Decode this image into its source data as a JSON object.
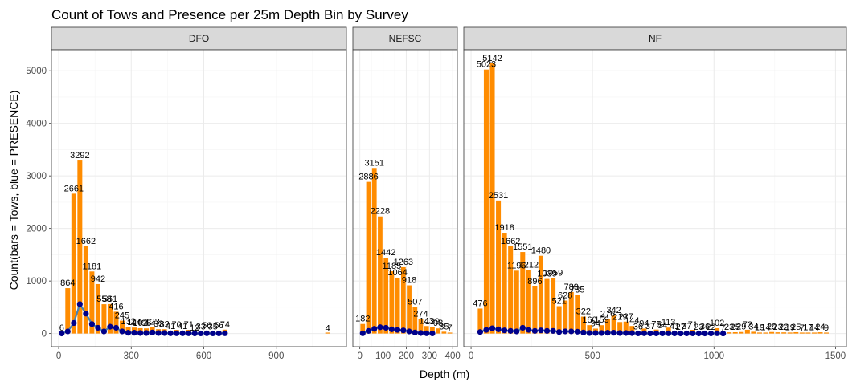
{
  "chart_data": {
    "type": "bar",
    "title": "Count of Tows and Presence per 25m Depth Bin by Survey",
    "xlabel": "Depth (m)",
    "ylabel": "Count(bars = Tows, blue = PRESENCE)",
    "ylim": [
      -250,
      5400
    ],
    "y_ticks": [
      0,
      1000,
      2000,
      3000,
      4000,
      5000
    ],
    "grid": true,
    "bin_width": 25,
    "series_colors": {
      "tows": "#ff8c00",
      "presence_line": "#4682b4",
      "presence_points": "#00008b"
    },
    "panels": [
      {
        "name": "DFO",
        "xlim": [
          -30,
          1190
        ],
        "x_ticks": [
          0,
          300,
          600,
          900
        ],
        "x": [
          12.5,
          37.5,
          62.5,
          87.5,
          112.5,
          137.5,
          162.5,
          187.5,
          212.5,
          237.5,
          262.5,
          287.5,
          312.5,
          337.5,
          362.5,
          387.5,
          412.5,
          437.5,
          462.5,
          487.5,
          512.5,
          537.5,
          562.5,
          587.5,
          612.5,
          637.5,
          662.5,
          687.5,
          1112.5
        ],
        "tows": [
          6,
          864,
          2661,
          3292,
          1662,
          1181,
          942,
          558,
          561,
          416,
          245,
          132,
          114,
          102,
          98,
          123,
          83,
          82,
          41,
          70,
          41,
          71,
          12,
          33,
          56,
          35,
          56,
          74,
          4
        ],
        "labels": [
          "6",
          "864",
          "2661",
          "3292",
          "1662",
          "1181",
          "942",
          "558",
          "561",
          "416",
          "245",
          "132",
          "114",
          "102",
          "98",
          "123",
          "83",
          "82",
          "41",
          "70",
          "41",
          "71",
          "12",
          "33",
          "56",
          "35",
          "56",
          "74",
          "4"
        ],
        "presence_x": [
          12.5,
          37.5,
          62.5,
          87.5,
          112.5,
          137.5,
          162.5,
          187.5,
          212.5,
          237.5,
          262.5,
          287.5,
          312.5,
          337.5,
          362.5,
          387.5,
          412.5,
          437.5,
          462.5,
          487.5,
          512.5,
          537.5,
          562.5,
          587.5,
          612.5,
          637.5,
          662.5,
          687.5
        ],
        "presence": [
          2,
          40,
          200,
          560,
          380,
          180,
          110,
          40,
          130,
          110,
          40,
          15,
          15,
          10,
          10,
          20,
          10,
          10,
          5,
          5,
          5,
          5,
          2,
          3,
          5,
          3,
          3,
          5
        ]
      },
      {
        "name": "NEFSC",
        "xlim": [
          -30,
          420
        ],
        "x_ticks": [
          0,
          100,
          200,
          300,
          400
        ],
        "x": [
          12.5,
          37.5,
          62.5,
          87.5,
          112.5,
          137.5,
          162.5,
          187.5,
          212.5,
          237.5,
          262.5,
          287.5,
          312.5,
          337.5,
          362.5,
          387.5
        ],
        "tows": [
          182,
          2886,
          3151,
          2228,
          1442,
          1185,
          1064,
          1263,
          918,
          507,
          274,
          143,
          129,
          98,
          35,
          7
        ],
        "labels": [
          "182",
          "2886",
          "3151",
          "2228",
          "1442",
          "1185",
          "1064",
          "1263",
          "918",
          "507",
          "274",
          "143",
          "129",
          "98",
          "35",
          "7"
        ],
        "presence_x": [
          12.5,
          37.5,
          62.5,
          87.5,
          112.5,
          137.5,
          162.5,
          187.5,
          212.5,
          237.5,
          262.5,
          287.5,
          312.5
        ],
        "presence": [
          5,
          50,
          90,
          120,
          110,
          80,
          70,
          60,
          40,
          20,
          10,
          5,
          3
        ]
      },
      {
        "name": "NF",
        "xlim": [
          -30,
          1545
        ],
        "x_ticks": [
          0,
          500,
          1000,
          1500
        ],
        "x": [
          37.5,
          62.5,
          87.5,
          112.5,
          137.5,
          162.5,
          187.5,
          212.5,
          237.5,
          262.5,
          287.5,
          312.5,
          337.5,
          362.5,
          387.5,
          412.5,
          437.5,
          462.5,
          487.5,
          512.5,
          537.5,
          562.5,
          587.5,
          612.5,
          637.5,
          662.5,
          687.5,
          712.5,
          737.5,
          762.5,
          787.5,
          812.5,
          837.5,
          862.5,
          887.5,
          912.5,
          937.5,
          962.5,
          987.5,
          1012.5,
          1037.5,
          1062.5,
          1087.5,
          1112.5,
          1137.5,
          1162.5,
          1187.5,
          1212.5,
          1237.5,
          1262.5,
          1287.5,
          1312.5,
          1337.5,
          1362.5,
          1387.5,
          1412.5,
          1437.5,
          1462.5
        ],
        "tows": [
          476,
          5023,
          5142,
          2531,
          1918,
          1662,
          1196,
          1551,
          1212,
          896,
          1480,
          1039,
          1059,
          521,
          628,
          789,
          735,
          322,
          160,
          94,
          159,
          276,
          342,
          219,
          227,
          144,
          36,
          94,
          37,
          75,
          54,
          113,
          41,
          27,
          37,
          71,
          23,
          36,
          22,
          102,
          7,
          23,
          25,
          29,
          72,
          34,
          19,
          14,
          29,
          23,
          22,
          19,
          25,
          7,
          17,
          14,
          24,
          9
        ],
        "labels": [
          "476",
          "5023",
          "5142",
          "2531",
          "1918",
          "1662",
          "1196",
          "1551",
          "1212",
          "896",
          "1480",
          "1039",
          "1059",
          "521",
          "628",
          "789",
          "735",
          "322",
          "160",
          "94",
          "159",
          "276",
          "342",
          "219",
          "227",
          "144",
          "36",
          "94",
          "37",
          "75",
          "54",
          "113",
          "41",
          "27",
          "37",
          "71",
          "23",
          "36",
          "22",
          "102",
          "7",
          "23",
          "25",
          "29",
          "72",
          "34",
          "19",
          "14",
          "29",
          "23",
          "22",
          "19",
          "25",
          "7",
          "17",
          "14",
          "24",
          "9"
        ],
        "presence_x": [
          37.5,
          62.5,
          87.5,
          112.5,
          137.5,
          162.5,
          187.5,
          212.5,
          237.5,
          262.5,
          287.5,
          312.5,
          337.5,
          362.5,
          387.5,
          412.5,
          437.5,
          462.5,
          487.5,
          512.5,
          537.5,
          562.5,
          587.5,
          612.5,
          637.5,
          662.5,
          687.5,
          712.5,
          737.5,
          762.5,
          787.5,
          812.5,
          837.5,
          862.5,
          887.5,
          912.5,
          937.5,
          962.5,
          987.5,
          1012.5,
          1037.5
        ],
        "presence": [
          30,
          70,
          100,
          80,
          60,
          50,
          40,
          110,
          70,
          50,
          60,
          50,
          50,
          30,
          40,
          40,
          35,
          20,
          10,
          10,
          10,
          15,
          15,
          10,
          10,
          8,
          3,
          5,
          3,
          3,
          3,
          5,
          3,
          2,
          3,
          3,
          2,
          2,
          2,
          5,
          1
        ]
      }
    ]
  }
}
